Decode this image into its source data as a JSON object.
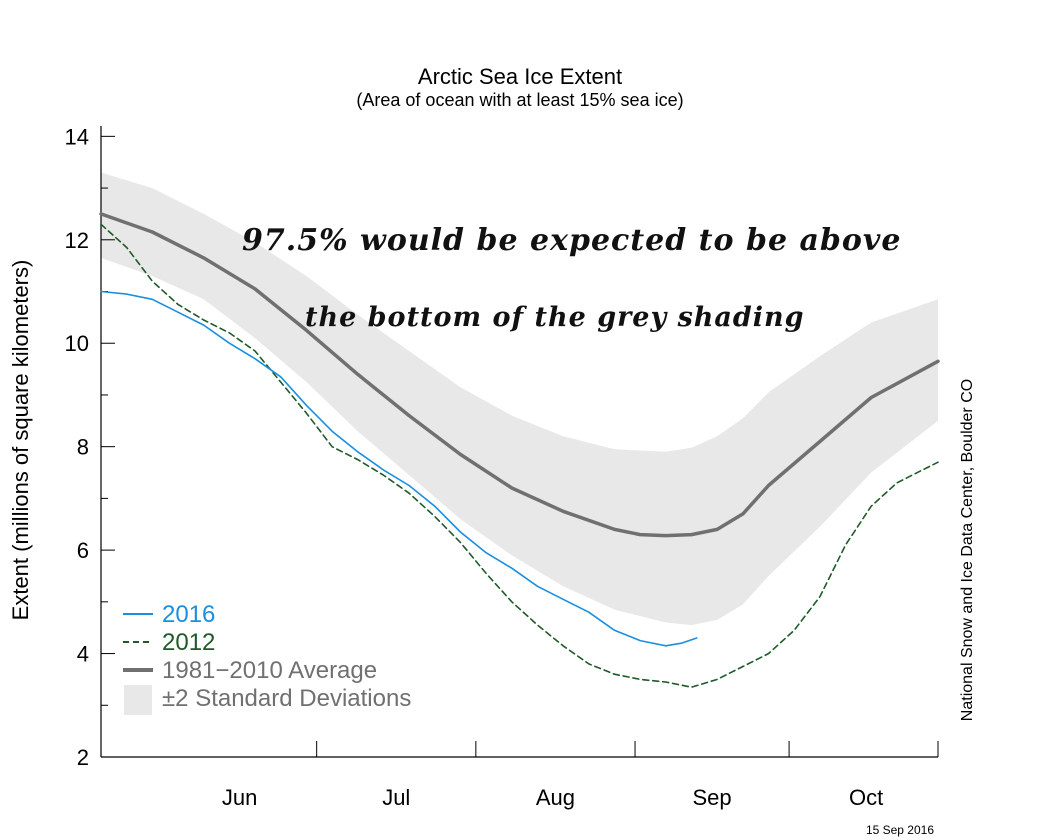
{
  "chart_data": {
    "type": "line",
    "title": "Arctic Sea Ice Extent",
    "subtitle": "(Area of ocean with at least 15% sea ice)",
    "ylabel": "Extent (millions of square kilometers)",
    "xlabel": "",
    "ylim": [
      2,
      14.2
    ],
    "yticks": [
      2,
      4,
      6,
      8,
      10,
      12,
      14
    ],
    "month_labels": [
      "Jun",
      "Jul",
      "Aug",
      "Sep",
      "Oct"
    ],
    "grid": false,
    "legend_position": "bottom-left",
    "x_axis_note": "x values are dates (month-day), 2016-05-20 through 2016-10-30",
    "series": [
      {
        "name": "2016",
        "style": "solid",
        "color": "#1a8fe0",
        "points": [
          [
            "05-20",
            11.0
          ],
          [
            "05-25",
            10.95
          ],
          [
            "05-30",
            10.85
          ],
          [
            "06-04",
            10.6
          ],
          [
            "06-09",
            10.35
          ],
          [
            "06-14",
            10.0
          ],
          [
            "06-19",
            9.7
          ],
          [
            "06-24",
            9.35
          ],
          [
            "06-29",
            8.8
          ],
          [
            "07-04",
            8.3
          ],
          [
            "07-09",
            7.9
          ],
          [
            "07-14",
            7.55
          ],
          [
            "07-19",
            7.25
          ],
          [
            "07-24",
            6.85
          ],
          [
            "07-29",
            6.35
          ],
          [
            "08-03",
            5.95
          ],
          [
            "08-08",
            5.65
          ],
          [
            "08-13",
            5.3
          ],
          [
            "08-18",
            5.05
          ],
          [
            "08-23",
            4.8
          ],
          [
            "08-28",
            4.45
          ],
          [
            "09-02",
            4.25
          ],
          [
            "09-07",
            4.15
          ],
          [
            "09-10",
            4.2
          ],
          [
            "09-13",
            4.3
          ]
        ]
      },
      {
        "name": "2012",
        "style": "dashed",
        "color": "#1f5a2a",
        "points": [
          [
            "05-20",
            12.3
          ],
          [
            "05-25",
            11.85
          ],
          [
            "05-30",
            11.2
          ],
          [
            "06-04",
            10.75
          ],
          [
            "06-09",
            10.45
          ],
          [
            "06-14",
            10.2
          ],
          [
            "06-19",
            9.85
          ],
          [
            "06-24",
            9.25
          ],
          [
            "06-29",
            8.65
          ],
          [
            "07-04",
            8.0
          ],
          [
            "07-09",
            7.75
          ],
          [
            "07-14",
            7.45
          ],
          [
            "07-19",
            7.1
          ],
          [
            "07-24",
            6.65
          ],
          [
            "07-29",
            6.15
          ],
          [
            "08-03",
            5.55
          ],
          [
            "08-08",
            5.0
          ],
          [
            "08-13",
            4.55
          ],
          [
            "08-18",
            4.15
          ],
          [
            "08-23",
            3.8
          ],
          [
            "08-28",
            3.6
          ],
          [
            "09-02",
            3.5
          ],
          [
            "09-07",
            3.45
          ],
          [
            "09-12",
            3.35
          ],
          [
            "09-17",
            3.5
          ],
          [
            "09-22",
            3.75
          ],
          [
            "09-27",
            4.0
          ],
          [
            "10-02",
            4.45
          ],
          [
            "10-07",
            5.1
          ],
          [
            "10-12",
            6.1
          ],
          [
            "10-17",
            6.85
          ],
          [
            "10-22",
            7.3
          ],
          [
            "10-27",
            7.55
          ],
          [
            "10-30",
            7.7
          ]
        ]
      },
      {
        "name": "1981−2010 Average",
        "style": "thick",
        "color": "#707070",
        "points": [
          [
            "05-20",
            12.5
          ],
          [
            "05-30",
            12.15
          ],
          [
            "06-09",
            11.65
          ],
          [
            "06-19",
            11.05
          ],
          [
            "06-29",
            10.25
          ],
          [
            "07-09",
            9.4
          ],
          [
            "07-19",
            8.6
          ],
          [
            "07-29",
            7.85
          ],
          [
            "08-08",
            7.2
          ],
          [
            "08-18",
            6.75
          ],
          [
            "08-28",
            6.4
          ],
          [
            "09-02",
            6.3
          ],
          [
            "09-07",
            6.28
          ],
          [
            "09-12",
            6.3
          ],
          [
            "09-17",
            6.4
          ],
          [
            "09-22",
            6.7
          ],
          [
            "09-27",
            7.25
          ],
          [
            "10-07",
            8.1
          ],
          [
            "10-17",
            8.95
          ],
          [
            "10-30",
            9.65
          ]
        ]
      }
    ],
    "band": {
      "name": "±2 Standard Deviations",
      "color": "#e8e8e8",
      "upper": [
        [
          "05-20",
          13.3
        ],
        [
          "05-30",
          13.0
        ],
        [
          "06-09",
          12.5
        ],
        [
          "06-19",
          11.95
        ],
        [
          "06-29",
          11.3
        ],
        [
          "07-09",
          10.55
        ],
        [
          "07-19",
          9.85
        ],
        [
          "07-29",
          9.15
        ],
        [
          "08-08",
          8.6
        ],
        [
          "08-18",
          8.2
        ],
        [
          "08-28",
          7.95
        ],
        [
          "09-07",
          7.9
        ],
        [
          "09-12",
          7.98
        ],
        [
          "09-17",
          8.2
        ],
        [
          "09-22",
          8.55
        ],
        [
          "09-27",
          9.05
        ],
        [
          "10-07",
          9.75
        ],
        [
          "10-17",
          10.4
        ],
        [
          "10-30",
          10.85
        ]
      ],
      "lower": [
        [
          "05-20",
          11.65
        ],
        [
          "05-30",
          11.3
        ],
        [
          "06-09",
          10.85
        ],
        [
          "06-19",
          10.1
        ],
        [
          "06-29",
          9.25
        ],
        [
          "07-09",
          8.3
        ],
        [
          "07-19",
          7.45
        ],
        [
          "07-29",
          6.6
        ],
        [
          "08-08",
          5.9
        ],
        [
          "08-18",
          5.3
        ],
        [
          "08-28",
          4.85
        ],
        [
          "09-07",
          4.6
        ],
        [
          "09-12",
          4.55
        ],
        [
          "09-17",
          4.65
        ],
        [
          "09-22",
          4.95
        ],
        [
          "09-27",
          5.5
        ],
        [
          "10-07",
          6.45
        ],
        [
          "10-17",
          7.5
        ],
        [
          "10-30",
          8.5
        ]
      ]
    },
    "annotations": [
      "97.5% would be expected to be above",
      "the bottom of the grey shading"
    ],
    "source_credit": "National Snow and Ice Data Center, Boulder CO",
    "date_stamp": "15 Sep 2016"
  }
}
